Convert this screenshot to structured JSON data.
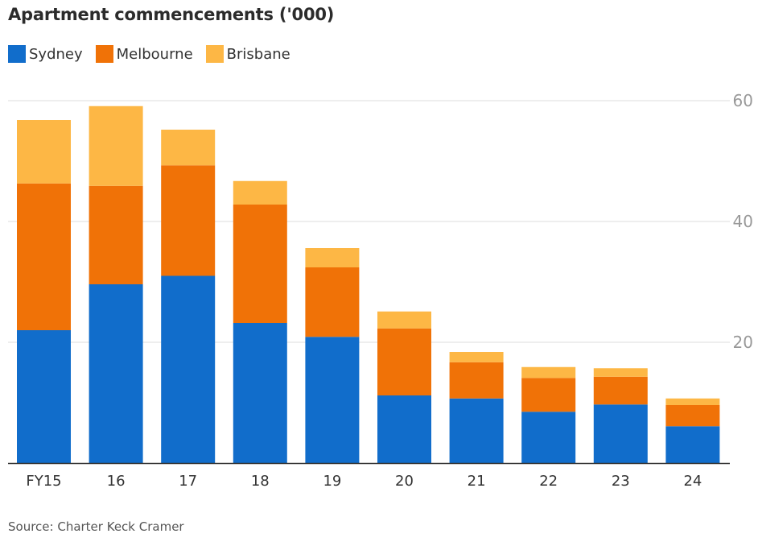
{
  "chart_data": {
    "type": "bar",
    "stacked": true,
    "title": "Apartment commencements ('000)",
    "xlabel": "",
    "ylabel": "",
    "categories": [
      "FY15",
      "16",
      "17",
      "18",
      "19",
      "20",
      "21",
      "22",
      "23",
      "24"
    ],
    "series": [
      {
        "name": "Sydney",
        "color": "#116dcb",
        "values": [
          22.0,
          29.6,
          31.0,
          23.2,
          20.9,
          11.2,
          10.7,
          8.5,
          9.7,
          6.1
        ]
      },
      {
        "name": "Melbourne",
        "color": "#f07207",
        "values": [
          24.3,
          16.3,
          18.3,
          19.6,
          11.5,
          11.1,
          6.0,
          5.6,
          4.6,
          3.5
        ]
      },
      {
        "name": "Brisbane",
        "color": "#fdb745",
        "values": [
          10.5,
          13.2,
          5.9,
          3.9,
          3.2,
          2.8,
          1.7,
          1.8,
          1.4,
          1.1
        ]
      }
    ],
    "ylim": [
      0,
      60
    ],
    "yticks": [
      20,
      40,
      60
    ],
    "grid": true,
    "y_axis_position": "right",
    "legend_position": "top-left",
    "source": "Source: Charter Keck Cramer"
  }
}
